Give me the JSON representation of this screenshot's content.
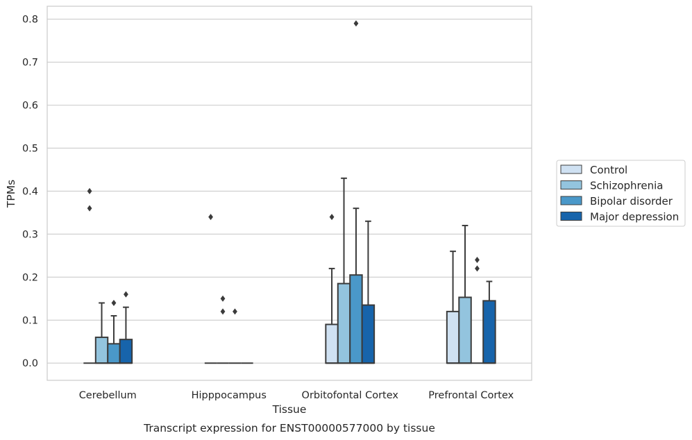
{
  "chart_data": {
    "type": "box",
    "title": "Transcript expression for ENST00000577000 by tissue",
    "xlabel": "Tissue",
    "ylabel": "TPMs",
    "ylim": [
      -0.04,
      0.83
    ],
    "yticks": [
      0.0,
      0.1,
      0.2,
      0.3,
      0.4,
      0.5,
      0.6,
      0.7,
      0.8
    ],
    "ytick_labels": [
      "0.0",
      "0.1",
      "0.2",
      "0.3",
      "0.4",
      "0.5",
      "0.6",
      "0.7",
      "0.8"
    ],
    "grid": "horizontal",
    "legend_position": "right",
    "categories": [
      "Cerebellum",
      "Hipppocampus",
      "Orbitofontal Cortex",
      "Prefrontal Cortex"
    ],
    "series": [
      {
        "name": "Control",
        "color": "#cfe1f2",
        "boxes": [
          {
            "q1": 0.0,
            "median": 0.0,
            "q3": 0.0,
            "whisker_low": 0.0,
            "whisker_high": 0.0,
            "fliers": [
              0.36,
              0.4
            ]
          },
          {
            "q1": 0.0,
            "median": 0.0,
            "q3": 0.0,
            "whisker_low": 0.0,
            "whisker_high": 0.0,
            "fliers": [
              0.34
            ]
          },
          {
            "q1": 0.0,
            "median": 0.0,
            "q3": 0.09,
            "whisker_low": 0.0,
            "whisker_high": 0.22,
            "fliers": [
              0.34
            ]
          },
          {
            "q1": 0.0,
            "median": 0.0,
            "q3": 0.12,
            "whisker_low": 0.0,
            "whisker_high": 0.26,
            "fliers": []
          }
        ]
      },
      {
        "name": "Schizophrenia",
        "color": "#93c4de",
        "boxes": [
          {
            "q1": 0.0,
            "median": 0.0,
            "q3": 0.06,
            "whisker_low": 0.0,
            "whisker_high": 0.14,
            "fliers": []
          },
          {
            "q1": 0.0,
            "median": 0.0,
            "q3": 0.0,
            "whisker_low": 0.0,
            "whisker_high": 0.0,
            "fliers": [
              0.12,
              0.15
            ]
          },
          {
            "q1": 0.0,
            "median": 0.0,
            "q3": 0.185,
            "whisker_low": 0.0,
            "whisker_high": 0.43,
            "fliers": []
          },
          {
            "q1": 0.0,
            "median": 0.0,
            "q3": 0.153,
            "whisker_low": 0.0,
            "whisker_high": 0.32,
            "fliers": []
          }
        ]
      },
      {
        "name": "Bipolar disorder",
        "color": "#4a98c9",
        "boxes": [
          {
            "q1": 0.0,
            "median": 0.0,
            "q3": 0.045,
            "whisker_low": 0.0,
            "whisker_high": 0.11,
            "fliers": [
              0.14
            ]
          },
          {
            "q1": 0.0,
            "median": 0.0,
            "q3": 0.0,
            "whisker_low": 0.0,
            "whisker_high": 0.0,
            "fliers": [
              0.12
            ]
          },
          {
            "q1": 0.0,
            "median": 0.0,
            "q3": 0.205,
            "whisker_low": 0.0,
            "whisker_high": 0.36,
            "fliers": [
              0.79
            ]
          },
          {
            "q1": 0.0,
            "median": 0.0,
            "q3": 0.0,
            "whisker_low": 0.0,
            "whisker_high": 0.0,
            "fliers": [
              0.22,
              0.24
            ]
          }
        ]
      },
      {
        "name": "Major depression",
        "color": "#1764ab",
        "boxes": [
          {
            "q1": 0.0,
            "median": 0.0,
            "q3": 0.055,
            "whisker_low": 0.0,
            "whisker_high": 0.13,
            "fliers": [
              0.16
            ]
          },
          {
            "q1": 0.0,
            "median": 0.0,
            "q3": 0.0,
            "whisker_low": 0.0,
            "whisker_high": 0.0,
            "fliers": []
          },
          {
            "q1": 0.0,
            "median": 0.0,
            "q3": 0.135,
            "whisker_low": 0.0,
            "whisker_high": 0.33,
            "fliers": []
          },
          {
            "q1": 0.0,
            "median": 0.0,
            "q3": 0.145,
            "whisker_low": 0.0,
            "whisker_high": 0.19,
            "fliers": []
          }
        ]
      }
    ]
  }
}
